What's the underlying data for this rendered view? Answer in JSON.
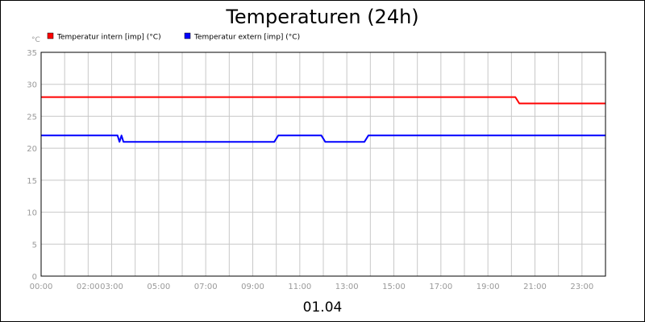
{
  "chart_data": {
    "type": "line",
    "title": "Temperaturen (24h)",
    "ylabel": "°C",
    "date_label": "01.04",
    "ylim": [
      0,
      35
    ],
    "yticks": [
      0,
      5,
      10,
      15,
      20,
      25,
      30,
      35
    ],
    "xlim": [
      "00:00",
      "24:00"
    ],
    "xticks": [
      "00:00",
      "02:00",
      "03:00",
      "05:00",
      "07:00",
      "09:00",
      "11:00",
      "13:00",
      "15:00",
      "17:00",
      "19:00",
      "21:00",
      "23:00"
    ],
    "grid": true,
    "legend_position": "top-left",
    "series": [
      {
        "name": "Temperatur intern [imp] (°C)",
        "color": "#ff0000",
        "x": [
          "00:00",
          "20:10",
          "20:20",
          "24:00"
        ],
        "y": [
          28,
          28,
          27,
          27
        ]
      },
      {
        "name": "Temperatur extern [imp] (°C)",
        "color": "#0000ff",
        "x": [
          "00:00",
          "03:15",
          "03:20",
          "03:25",
          "03:30",
          "03:35",
          "09:55",
          "10:05",
          "11:55",
          "12:05",
          "13:45",
          "13:55",
          "24:00"
        ],
        "y": [
          22,
          22,
          21,
          22,
          21,
          21,
          21,
          22,
          22,
          21,
          21,
          22,
          22
        ]
      }
    ]
  }
}
